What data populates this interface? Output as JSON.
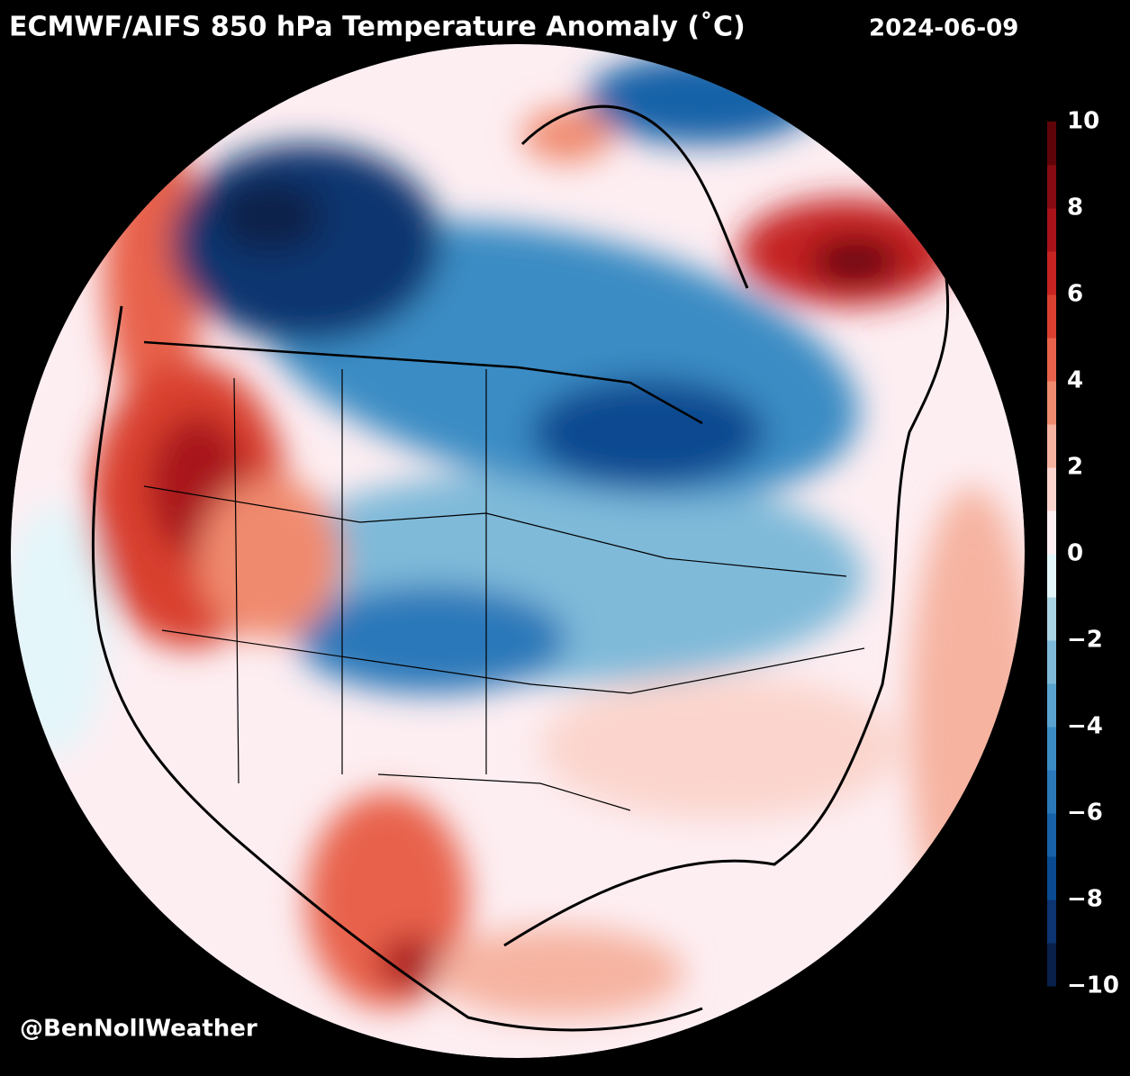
{
  "title": "ECMWF/AIFS 850 hPa Temperature Anomaly (˚C)",
  "date": "2024-06-09",
  "credit": "@BenNollWeather",
  "colorbar": {
    "lim": [
      -10,
      10
    ],
    "ticks": [
      {
        "value": -10,
        "label": "−10"
      },
      {
        "value": -8,
        "label": "−8"
      },
      {
        "value": -6,
        "label": "−6"
      },
      {
        "value": -4,
        "label": "−4"
      },
      {
        "value": -2,
        "label": "−2"
      },
      0,
      2,
      4,
      6,
      8,
      10
    ],
    "colors": [
      "#08204a",
      "#0b3470",
      "#0a4a90",
      "#1762a8",
      "#2b78b9",
      "#3b8cc4",
      "#5aa3d0",
      "#7fbad9",
      "#a8d4e4",
      "#e3f6fa",
      "#fdeef2",
      "#fbd5cd",
      "#f6b3a0",
      "#f08a6e",
      "#e8624b",
      "#d9402f",
      "#c52421",
      "#a8131a",
      "#850b12",
      "#5e0408"
    ]
  }
}
